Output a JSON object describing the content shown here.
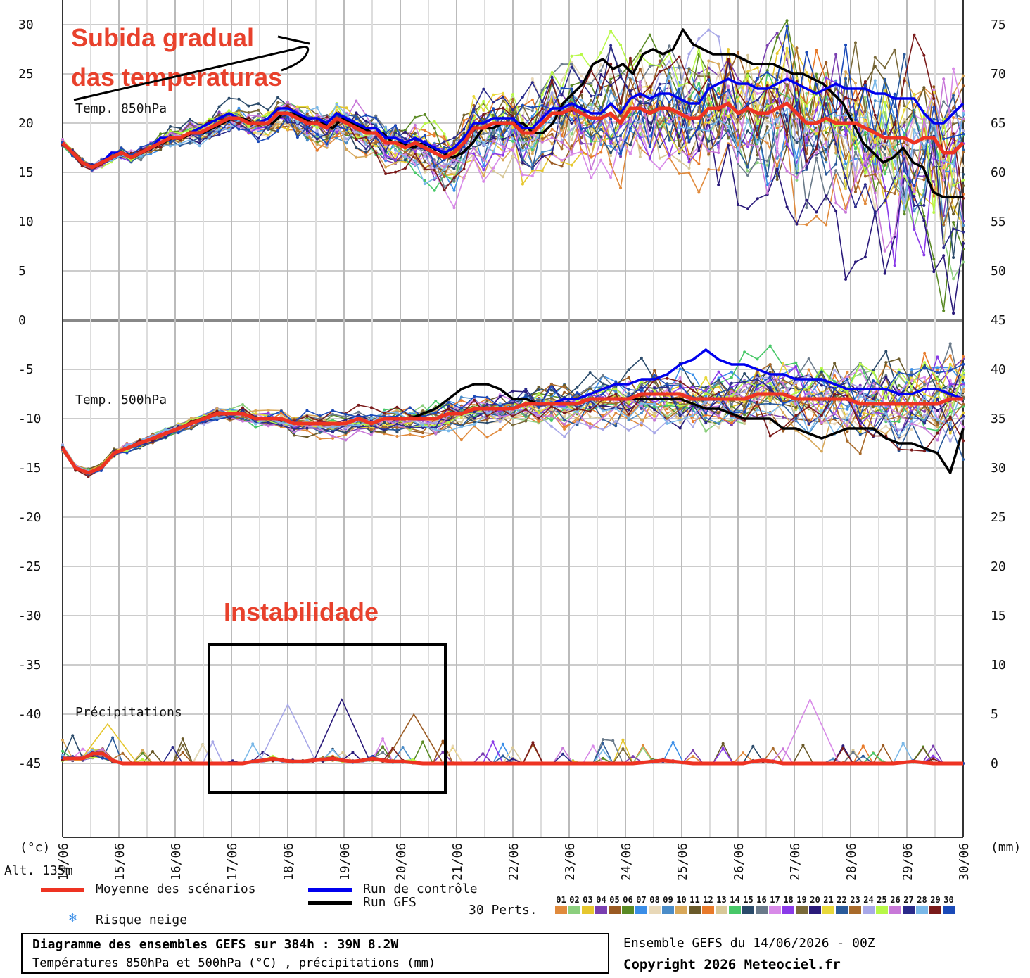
{
  "chart_data": {
    "type": "line",
    "left_axis": {
      "unit_label": "(°c)",
      "ticks": [
        30,
        25,
        20,
        15,
        10,
        5,
        0,
        -5,
        -10,
        -15,
        -20,
        -25,
        -30,
        -35,
        -40,
        -45
      ],
      "ylim": [
        -45,
        30
      ]
    },
    "right_axis": {
      "unit_label": "(mm)",
      "ticks": [
        75,
        70,
        65,
        60,
        55,
        50,
        45,
        40,
        35,
        30,
        25,
        20,
        15,
        10,
        5,
        0
      ]
    },
    "x_ticks": [
      "14/06",
      "15/06",
      "16/06",
      "17/06",
      "18/06",
      "19/06",
      "20/06",
      "21/06",
      "22/06",
      "23/06",
      "24/06",
      "25/06",
      "26/06",
      "27/06",
      "28/06",
      "29/06",
      "30/06"
    ],
    "altitude": "Alt. 135m",
    "panels": [
      {
        "label": "Temp. 850hPa",
        "mean": [
          18,
          17,
          16,
          15.5,
          16,
          16.5,
          17,
          16.5,
          17,
          17.5,
          18,
          18.5,
          18.5,
          19,
          19,
          19.5,
          20,
          20.5,
          20.5,
          20,
          20,
          20,
          21,
          21,
          20.5,
          20,
          20,
          19.5,
          20.5,
          20,
          19.5,
          19,
          19,
          18,
          18,
          17.5,
          18,
          17.5,
          17,
          16.5,
          17,
          18,
          19.5,
          19.5,
          20,
          20,
          20,
          19,
          19,
          20,
          21,
          21,
          21.5,
          21,
          20.5,
          20.5,
          21,
          20,
          21.5,
          21.5,
          21,
          21.5,
          21.5,
          21,
          20.5,
          20.5,
          21.5,
          21.5,
          22,
          21,
          21.5,
          21,
          21,
          21.5,
          22,
          21,
          20,
          20,
          20.5,
          20,
          20,
          20,
          19.5,
          19,
          18.5,
          18.5,
          18.5,
          18,
          18.5,
          18.5,
          17,
          17,
          18
        ],
        "control": [
          18,
          17,
          16,
          15.5,
          16,
          17,
          17,
          16.5,
          17,
          17.5,
          18.5,
          18.5,
          18.5,
          19,
          19.5,
          20,
          20.5,
          21,
          20.5,
          20,
          20,
          20.5,
          21.5,
          21.5,
          21,
          20.5,
          20.5,
          20,
          21,
          20.5,
          20,
          19.5,
          19.5,
          18.5,
          18.5,
          18,
          18.5,
          18,
          17.5,
          17,
          17.5,
          18.5,
          20,
          20,
          20.5,
          20.5,
          20.5,
          19.5,
          19.5,
          20.5,
          21.5,
          21.5,
          22,
          21.5,
          21,
          21,
          22,
          21,
          22.5,
          23,
          22.5,
          23,
          23,
          22.5,
          22,
          22,
          23.5,
          24,
          24.5,
          24,
          24,
          23.5,
          23.5,
          24,
          24.5,
          24,
          23.5,
          23,
          23.5,
          24,
          23.5,
          23.5,
          23.5,
          23,
          23,
          22.5,
          22.5,
          22.5,
          21,
          20,
          20,
          21,
          22
        ],
        "gfs": [
          18,
          17,
          16,
          15.5,
          16,
          16.5,
          17,
          16.5,
          17,
          17.5,
          18,
          18.5,
          18.5,
          19,
          19,
          19.5,
          20,
          20.5,
          20.5,
          20,
          20,
          20,
          21,
          21,
          20.5,
          20,
          20,
          19.5,
          20.5,
          20,
          19.5,
          19,
          19,
          18,
          18,
          17.5,
          18,
          17.5,
          17,
          16.5,
          17,
          18,
          19.5,
          19.5,
          20,
          20,
          20,
          19,
          19,
          20,
          22,
          23,
          24,
          26,
          26.5,
          25.5,
          26,
          25,
          27,
          27.5,
          27,
          27.5,
          29.5,
          28,
          27.5,
          27,
          27,
          27,
          26.5,
          26,
          26,
          26,
          25.5,
          25,
          25,
          24.5,
          24,
          23,
          22,
          20,
          18,
          17,
          16,
          16.5,
          17.5,
          16,
          15.5,
          13,
          12.5,
          12.5,
          12.5
        ]
      },
      {
        "label": "Temp. 500hPa",
        "mean": [
          -13,
          -15,
          -15.5,
          -15,
          -13.5,
          -13,
          -12.5,
          -12,
          -11.5,
          -11,
          -10.5,
          -10,
          -9.5,
          -9.5,
          -9.5,
          -10,
          -10,
          -10,
          -10.5,
          -10.5,
          -10.5,
          -10.5,
          -10.5,
          -10,
          -10.5,
          -10,
          -10,
          -10,
          -10,
          -10,
          -9.5,
          -9.5,
          -9,
          -9,
          -9,
          -9,
          -8.5,
          -8.5,
          -8.5,
          -8.5,
          -8.5,
          -8,
          -8,
          -8,
          -8,
          -7.5,
          -7.5,
          -7.5,
          -7.5,
          -8,
          -8,
          -8,
          -8,
          -8,
          -7.5,
          -7.5,
          -7.5,
          -8,
          -8,
          -8,
          -8,
          -8,
          -8.5,
          -8.5,
          -8.5,
          -8.5,
          -8.5,
          -8.5,
          -8.5,
          -8,
          -8
        ],
        "control": [
          -13,
          -15,
          -15.5,
          -15,
          -13.5,
          -13,
          -12.5,
          -12,
          -11.5,
          -11,
          -10.5,
          -10,
          -9.5,
          -9.5,
          -9.5,
          -10,
          -10,
          -10,
          -10.5,
          -10.5,
          -10.5,
          -10.5,
          -10.5,
          -10,
          -10.5,
          -10,
          -10,
          -10,
          -10,
          -10,
          -9.5,
          -9.5,
          -9,
          -9,
          -9,
          -9,
          -8.5,
          -8.5,
          -8.5,
          -8,
          -8,
          -7.5,
          -7,
          -6.5,
          -6.5,
          -6,
          -6,
          -5.5,
          -4.5,
          -4,
          -3,
          -4,
          -4.5,
          -4.5,
          -5,
          -5.5,
          -5.5,
          -6,
          -6,
          -6,
          -6.5,
          -7,
          -7,
          -7,
          -7,
          -7.5,
          -7.5,
          -7,
          -7,
          -7.5,
          -8
        ],
        "gfs": [
          -13,
          -15,
          -15.5,
          -15,
          -13.5,
          -13,
          -12.5,
          -12,
          -11.5,
          -11,
          -10.5,
          -10,
          -9.5,
          -9.5,
          -9.5,
          -10,
          -10,
          -10,
          -10.5,
          -10.5,
          -10.5,
          -10.5,
          -10.5,
          -10,
          -10.5,
          -10,
          -10,
          -10,
          -9.5,
          -9,
          -8,
          -7,
          -6.5,
          -6.5,
          -7,
          -8,
          -8,
          -8.5,
          -8.5,
          -8.5,
          -8.5,
          -8,
          -8,
          -8,
          -8,
          -8,
          -8,
          -8,
          -8,
          -8.5,
          -9,
          -9,
          -9.5,
          -10,
          -10,
          -10,
          -11,
          -11,
          -11.5,
          -12,
          -11.5,
          -11,
          -11,
          -11,
          -12,
          -12.5,
          -12.5,
          -13,
          -13.5,
          -15.5,
          -11
        ]
      },
      {
        "label": "Précipitations",
        "mean_mm": [
          0.5,
          0.5,
          0.5,
          1,
          1,
          0.3,
          0,
          0,
          0,
          0,
          0,
          0,
          0,
          0,
          0,
          0,
          0,
          0,
          0,
          0.2,
          0.3,
          0.5,
          0.3,
          0.2,
          0.2,
          0.3,
          0.4,
          0.5,
          0.3,
          0.2,
          0.3,
          0.5,
          0.3,
          0.2,
          0.2,
          0.1,
          0,
          0,
          0,
          0,
          0,
          0,
          0,
          0,
          0,
          0,
          0,
          0,
          0,
          0,
          0,
          0,
          0,
          0,
          0,
          0,
          0,
          0,
          0.1,
          0.2,
          0.3,
          0.2,
          0.1,
          0,
          0,
          0,
          0,
          0,
          0,
          0.2,
          0.3,
          0.2,
          0,
          0,
          0,
          0,
          0,
          0,
          0,
          0,
          0,
          0,
          0,
          0,
          0.1,
          0.2,
          0.1,
          0,
          0,
          0,
          0
        ],
        "max_member_mm": [
          {
            "member": "17",
            "mm": 6
          },
          {
            "member": "12",
            "mm": 6.5
          },
          {
            "member": "09",
            "mm": 5
          },
          {
            "member": "03",
            "mm": 4
          }
        ]
      }
    ],
    "annotations": [
      "Subida gradual\ndas temperaturas",
      "Instabilidade"
    ]
  },
  "annotation_1_line1": "Subida gradual",
  "annotation_1_line2": "das temperaturas",
  "annotation_2": "Instabilidade",
  "legend": {
    "mean_label": "Moyenne des scénarios",
    "control_label": "Run de contrôle",
    "gfs_label": "Run GFS",
    "snow_label": "Risque neige",
    "perts_label": "30 Perts.",
    "mean_color": "#ee3322",
    "control_color": "#0000ee",
    "gfs_color": "#000000",
    "members": [
      {
        "id": "01",
        "color": "#e08a3c"
      },
      {
        "id": "02",
        "color": "#8ccf7e"
      },
      {
        "id": "03",
        "color": "#e6c72e"
      },
      {
        "id": "04",
        "color": "#7a3fb0"
      },
      {
        "id": "05",
        "color": "#9a5a22"
      },
      {
        "id": "06",
        "color": "#5a8a24"
      },
      {
        "id": "07",
        "color": "#3a8ee8"
      },
      {
        "id": "08",
        "color": "#e8d8b8"
      },
      {
        "id": "09",
        "color": "#4a8cc8"
      },
      {
        "id": "10",
        "color": "#d8a85a"
      },
      {
        "id": "11",
        "color": "#6a5a2a"
      },
      {
        "id": "12",
        "color": "#e87a2a"
      },
      {
        "id": "13",
        "color": "#d8c898"
      },
      {
        "id": "14",
        "color": "#48c868"
      },
      {
        "id": "15",
        "color": "#2a4a6a"
      },
      {
        "id": "16",
        "color": "#6a7a8a"
      },
      {
        "id": "17",
        "color": "#d88ae8"
      },
      {
        "id": "18",
        "color": "#8a3ae8"
      },
      {
        "id": "19",
        "color": "#7a6a3a"
      },
      {
        "id": "20",
        "color": "#2a1a7a"
      },
      {
        "id": "21",
        "color": "#e8d83a"
      },
      {
        "id": "22",
        "color": "#2a5a9a"
      },
      {
        "id": "23",
        "color": "#a86a2a"
      },
      {
        "id": "24",
        "color": "#a8a8e8"
      },
      {
        "id": "25",
        "color": "#b8f848"
      },
      {
        "id": "26",
        "color": "#c878d8"
      },
      {
        "id": "27",
        "color": "#2a2a8a"
      },
      {
        "id": "28",
        "color": "#7ab8e8"
      },
      {
        "id": "29",
        "color": "#7a1a1a"
      },
      {
        "id": "30",
        "color": "#1a4ab8"
      }
    ]
  },
  "footer": {
    "title": "Diagramme des ensembles GEFS sur 384h : 39N 8.2W",
    "subtitle": "Températures 850hPa et 500hPa (°C) , précipitations (mm)",
    "ensemble": "Ensemble GEFS du 14/06/2026 - 00Z",
    "copyright": "Copyright 2026 Meteociel.fr"
  }
}
